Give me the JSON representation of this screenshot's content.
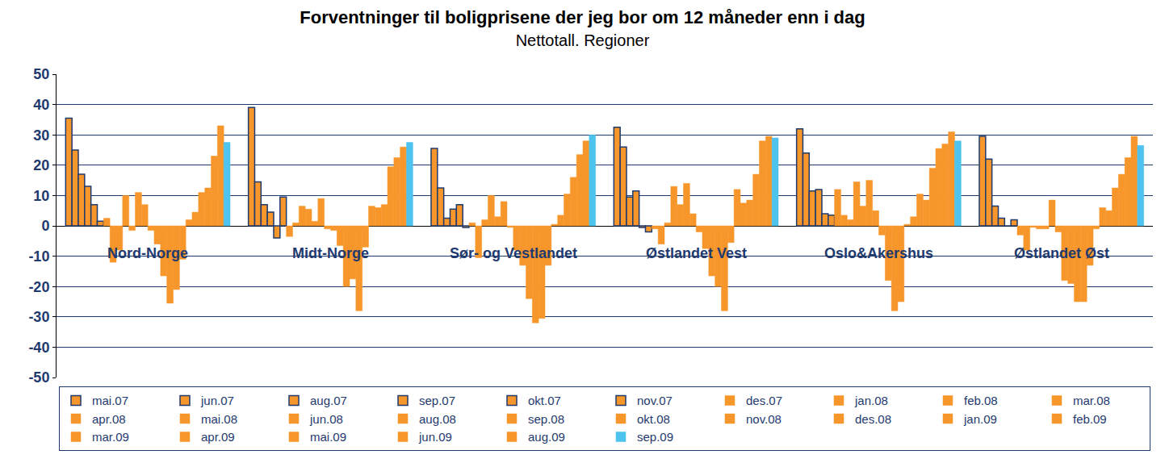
{
  "chart_data": {
    "type": "bar",
    "title": "Forventninger til boligprisene der jeg bor om 12 måneder enn i dag",
    "subtitle": "Nettotall. Regioner",
    "categories": [
      "Nord-Norge",
      "Midt-Norge",
      "Sør- og Vestlandet",
      "Østlandet Vest",
      "Oslo&Akershus",
      "Østlandet Øst"
    ],
    "series": [
      {
        "name": "mai.07",
        "color": "#F7962B",
        "marker": "outlined",
        "values": [
          35.5,
          39,
          25.5,
          32.5,
          32,
          29.5
        ]
      },
      {
        "name": "jun.07",
        "color": "#F7962B",
        "marker": "outlined",
        "values": [
          25,
          14.5,
          12.5,
          26,
          24,
          22
        ]
      },
      {
        "name": "aug.07",
        "color": "#F7962B",
        "marker": "outlined",
        "values": [
          17,
          7,
          2.5,
          9.5,
          11.5,
          6.5
        ]
      },
      {
        "name": "sep.07",
        "color": "#F7962B",
        "marker": "outlined",
        "values": [
          13,
          4.5,
          5.5,
          11.5,
          12,
          2.5
        ]
      },
      {
        "name": "okt.07",
        "color": "#F7962B",
        "marker": "outlined",
        "values": [
          7,
          -4,
          7,
          -0.5,
          4,
          0
        ]
      },
      {
        "name": "nov.07",
        "color": "#F7962B",
        "marker": "outlined",
        "values": [
          1.5,
          9.5,
          -0.5,
          -2,
          3.5,
          2
        ]
      },
      {
        "name": "des.07",
        "color": "#F7962B",
        "values": [
          2.5,
          -3.5,
          1,
          -1,
          12,
          -3
        ]
      },
      {
        "name": "jan.08",
        "color": "#F7962B",
        "values": [
          -12,
          1,
          -10.5,
          -6,
          3.5,
          -8
        ]
      },
      {
        "name": "feb.08",
        "color": "#F7962B",
        "values": [
          -8,
          6.5,
          2,
          1,
          2,
          -0.5
        ]
      },
      {
        "name": "mar.08",
        "color": "#F7962B",
        "values": [
          10,
          5.5,
          10,
          13,
          14.5,
          -1
        ]
      },
      {
        "name": "apr.08",
        "color": "#F7962B",
        "values": [
          -1.5,
          1.5,
          3,
          7,
          6.5,
          -1
        ]
      },
      {
        "name": "mai.08",
        "color": "#F7962B",
        "values": [
          11,
          9,
          8,
          14,
          15,
          8.5
        ]
      },
      {
        "name": "jun.08",
        "color": "#F7962B",
        "values": [
          7,
          -1,
          -0.5,
          4,
          5,
          -2
        ]
      },
      {
        "name": "aug.08",
        "color": "#F7962B",
        "values": [
          -1.5,
          -1.5,
          -8,
          -2,
          -3,
          -18
        ]
      },
      {
        "name": "sep.08",
        "color": "#F7962B",
        "values": [
          -6,
          -6.5,
          -13,
          -7.5,
          -18,
          -19
        ]
      },
      {
        "name": "okt.08",
        "color": "#F7962B",
        "values": [
          -16.5,
          -20,
          -24,
          -16.5,
          -28,
          -25
        ]
      },
      {
        "name": "nov.08",
        "color": "#F7962B",
        "values": [
          -25.5,
          -17.5,
          -32,
          -20,
          -25,
          -25
        ]
      },
      {
        "name": "des.08",
        "color": "#F7962B",
        "values": [
          -21,
          -28,
          -30.5,
          -28,
          0.5,
          -13
        ]
      },
      {
        "name": "jan.09",
        "color": "#F7962B",
        "values": [
          -11,
          -7,
          -13,
          -5.5,
          3,
          -1
        ]
      },
      {
        "name": "feb.09",
        "color": "#F7962B",
        "values": [
          2,
          6.5,
          0.5,
          12,
          10.5,
          6
        ]
      },
      {
        "name": "mar.09",
        "color": "#F7962B",
        "values": [
          4.5,
          6,
          3.5,
          7.5,
          8.5,
          5
        ]
      },
      {
        "name": "apr.09",
        "color": "#F7962B",
        "values": [
          11,
          7,
          10.5,
          8.5,
          19,
          12.5
        ]
      },
      {
        "name": "mai.09",
        "color": "#F7962B",
        "values": [
          12.5,
          19.5,
          16,
          17,
          25.5,
          17
        ]
      },
      {
        "name": "jun.09",
        "color": "#F7962B",
        "values": [
          23,
          22.5,
          23.5,
          28,
          27,
          22.5
        ]
      },
      {
        "name": "aug.09",
        "color": "#F7962B",
        "values": [
          33,
          26,
          28,
          29.5,
          31,
          29.5
        ]
      },
      {
        "name": "sep.09",
        "color": "#4DC3EE",
        "values": [
          27.5,
          27.5,
          30,
          29,
          28,
          26.5
        ]
      }
    ],
    "ylim": [
      -50,
      50
    ],
    "yticks": [
      -50,
      -40,
      -30,
      -20,
      -10,
      0,
      10,
      20,
      30,
      40,
      50
    ],
    "grid": true,
    "legend": "bottom",
    "tick_labels": "y"
  }
}
